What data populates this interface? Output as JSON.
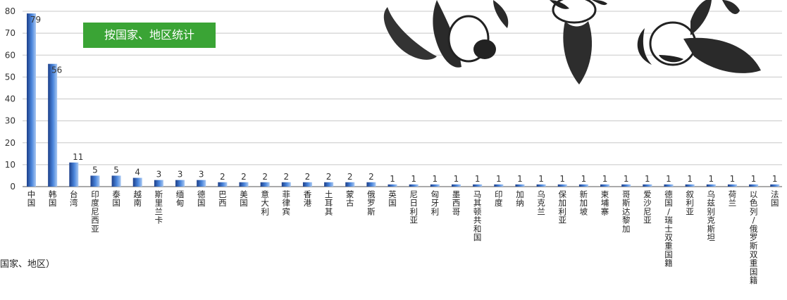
{
  "badge_label": "按国家、地区统计",
  "footnote": "国家、地区）",
  "chart_data": {
    "type": "bar",
    "title": "按国家、地区统计",
    "ylim": [
      0,
      80
    ],
    "yticks": [
      0,
      10,
      20,
      30,
      40,
      50,
      60,
      70,
      80
    ],
    "grid": true,
    "categories": [
      "中国",
      "韩国",
      "台湾",
      "印度尼西亚",
      "泰国",
      "越南",
      "斯里兰卡",
      "缅甸",
      "德国",
      "巴西",
      "美国",
      "意大利",
      "菲律宾",
      "香港",
      "土耳其",
      "蒙古",
      "俄罗斯",
      "英国",
      "尼日利亚",
      "匈牙利",
      "墨西哥",
      "马其顿共和国",
      "印度",
      "加纳",
      "乌克兰",
      "保加利亚",
      "新加坡",
      "柬埔寨",
      "哥斯达黎加",
      "爱沙尼亚",
      "德国/瑞士双重国籍",
      "叙利亚",
      "乌兹别克斯坦",
      "荷兰",
      "以色列/俄罗斯双重国籍",
      "法国"
    ],
    "values": [
      79,
      56,
      11,
      5,
      5,
      4,
      3,
      3,
      3,
      2,
      2,
      2,
      2,
      2,
      2,
      2,
      2,
      1,
      1,
      1,
      1,
      1,
      1,
      1,
      1,
      1,
      1,
      1,
      1,
      1,
      1,
      1,
      1,
      1,
      1,
      1
    ],
    "bar_color": "#2a5db5"
  }
}
